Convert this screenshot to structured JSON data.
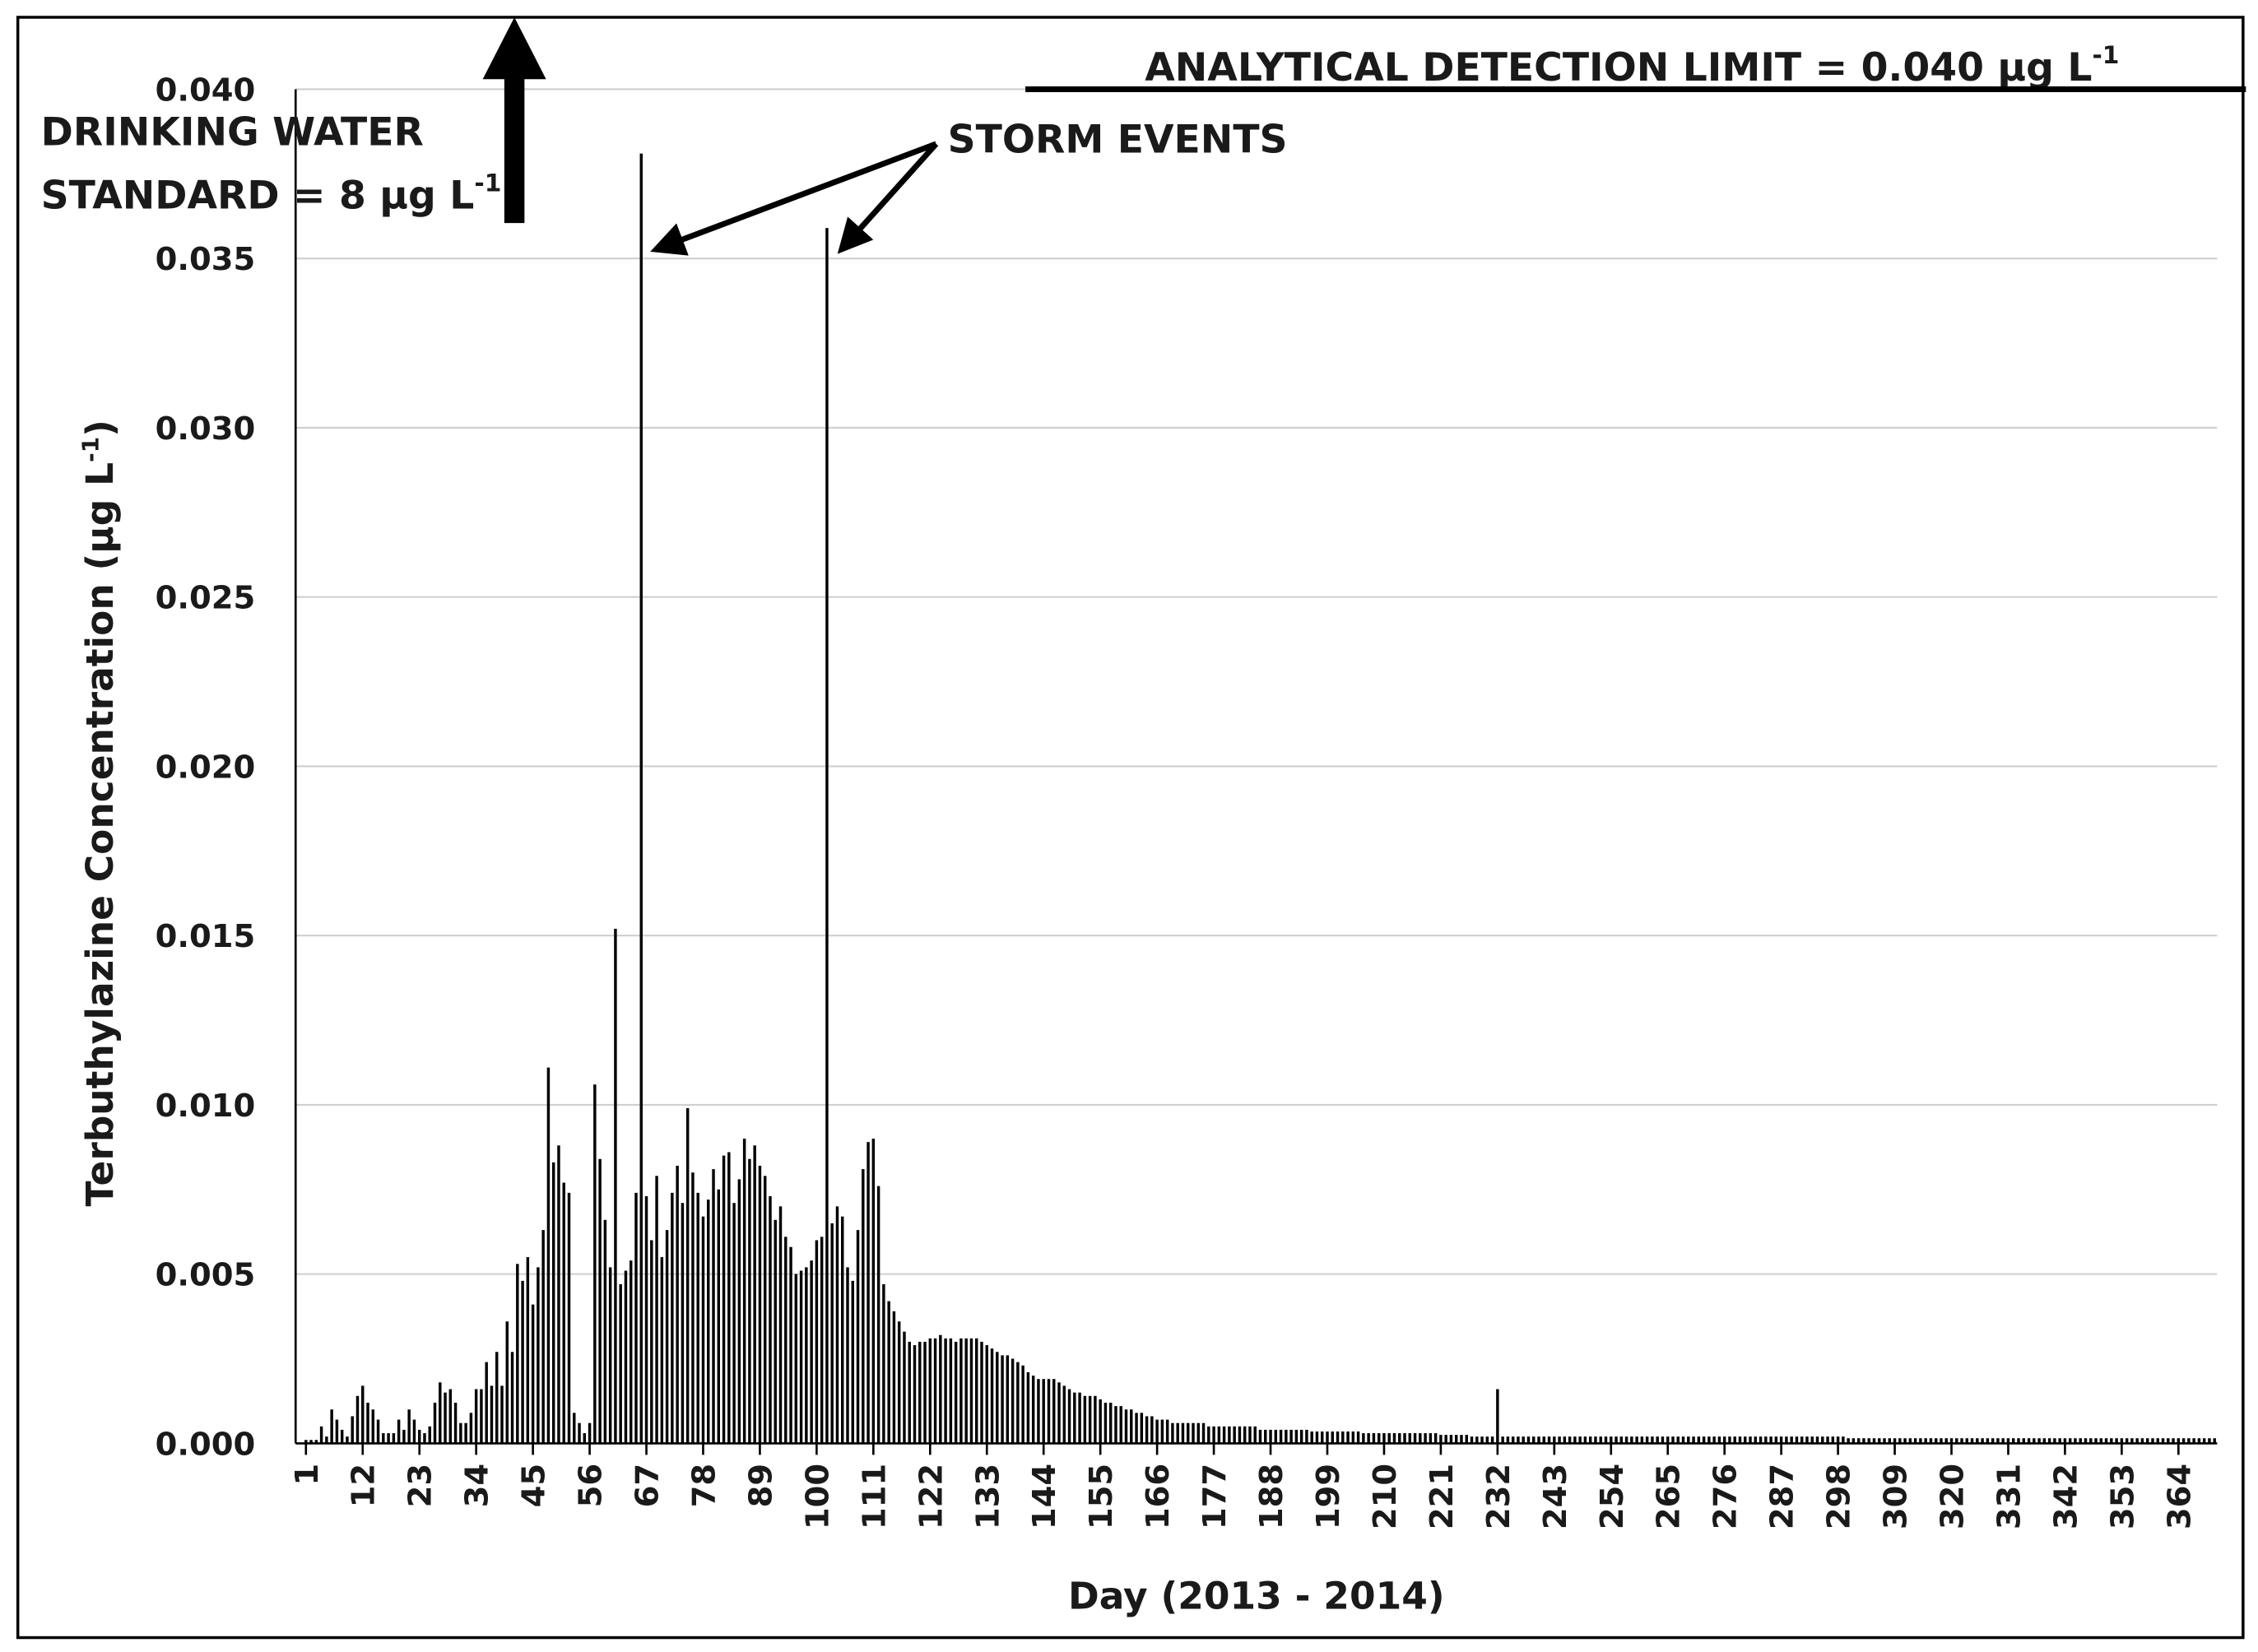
{
  "chart_data": {
    "type": "bar",
    "color": "#000000",
    "grid": true,
    "x_label": "Day (2013 - 2014)",
    "y_label": {
      "text": "Terbuthylazine Concentration (μg L",
      "sup": "-1",
      "close": ")"
    },
    "annotations": {
      "drinking_water": {
        "lines": [
          "DRINKING WATER",
          "STANDARD = 8 μg L"
        ],
        "sup": "-1"
      },
      "detection_limit": {
        "text": "ANALYTICAL DETECTION LIMIT = 0.040 μg L",
        "sup": "-1",
        "value": 0.04
      },
      "storm": {
        "text": "STORM EVENTS",
        "days": [
          66,
          102
        ]
      }
    },
    "xlim": [
      -1,
      371.5
    ],
    "xticks": [
      1,
      12,
      23,
      34,
      45,
      56,
      67,
      78,
      89,
      100,
      111,
      122,
      133,
      144,
      155,
      166,
      177,
      188,
      199,
      210,
      221,
      232,
      243,
      254,
      265,
      276,
      287,
      298,
      309,
      320,
      331,
      342,
      353,
      364
    ],
    "ylim": [
      0,
      0.04
    ],
    "yticks": [
      {
        "value": 0,
        "label": "0.000"
      },
      0.005,
      {
        "value": 0.01,
        "label": "0.010"
      },
      0.015,
      {
        "value": 0.02,
        "label": "0.020"
      },
      0.025,
      {
        "value": 0.03,
        "label": "0.030"
      },
      0.035,
      {
        "value": 0.04,
        "label": "0.040"
      }
    ],
    "x": [
      1,
      2,
      3,
      4,
      5,
      6,
      7,
      8,
      9,
      10,
      11,
      12,
      13,
      14,
      15,
      16,
      17,
      18,
      19,
      20,
      21,
      22,
      23,
      24,
      25,
      26,
      27,
      28,
      29,
      30,
      31,
      32,
      33,
      34,
      35,
      36,
      37,
      38,
      39,
      40,
      41,
      42,
      43,
      44,
      45,
      46,
      47,
      48,
      49,
      50,
      51,
      52,
      53,
      54,
      55,
      56,
      57,
      58,
      59,
      60,
      61,
      62,
      63,
      64,
      65,
      66,
      67,
      68,
      69,
      70,
      71,
      72,
      73,
      74,
      75,
      76,
      77,
      78,
      79,
      80,
      81,
      82,
      83,
      84,
      85,
      86,
      87,
      88,
      89,
      90,
      91,
      92,
      93,
      94,
      95,
      96,
      97,
      98,
      99,
      100,
      101,
      102,
      103,
      104,
      105,
      106,
      107,
      108,
      109,
      110,
      111,
      112,
      113,
      114,
      115,
      116,
      117,
      118,
      119,
      120,
      121,
      122,
      123,
      124,
      125,
      126,
      127,
      128,
      129,
      130,
      131,
      132,
      133,
      134,
      135,
      136,
      137,
      138,
      139,
      140,
      141,
      142,
      143,
      144,
      145,
      146,
      147,
      148,
      149,
      150,
      151,
      152,
      153,
      154,
      155,
      156,
      157,
      158,
      159,
      160,
      161,
      162,
      163,
      164,
      165,
      166,
      167,
      168,
      169,
      170,
      171,
      172,
      173,
      174,
      175,
      176,
      177,
      178,
      179,
      180,
      181,
      182,
      183,
      184,
      185,
      186,
      187,
      188,
      189,
      190,
      191,
      192,
      193,
      194,
      195,
      196,
      197,
      198,
      199,
      200,
      201,
      202,
      203,
      204,
      205,
      206,
      207,
      208,
      209,
      210,
      211,
      212,
      213,
      214,
      215,
      216,
      217,
      218,
      219,
      220,
      221,
      222,
      223,
      224,
      225,
      226,
      227,
      228,
      229,
      230,
      231,
      232,
      233,
      234,
      235,
      236,
      237,
      238,
      239,
      240,
      241,
      242,
      243,
      244,
      245,
      246,
      247,
      248,
      249,
      250,
      251,
      252,
      253,
      254,
      255,
      256,
      257,
      258,
      259,
      260,
      261,
      262,
      263,
      264,
      265,
      266,
      267,
      268,
      269,
      270,
      271,
      272,
      273,
      274,
      275,
      276,
      277,
      278,
      279,
      280,
      281,
      282,
      283,
      284,
      285,
      286,
      287,
      288,
      289,
      290,
      291,
      292,
      293,
      294,
      295,
      296,
      297,
      298,
      299,
      300,
      301,
      302,
      303,
      304,
      305,
      306,
      307,
      308,
      309,
      310,
      311,
      312,
      313,
      314,
      315,
      316,
      317,
      318,
      319,
      320,
      321,
      322,
      323,
      324,
      325,
      326,
      327,
      328,
      329,
      330,
      331,
      332,
      333,
      334,
      335,
      336,
      337,
      338,
      339,
      340,
      341,
      342,
      343,
      344,
      345,
      346,
      347,
      348,
      349,
      350,
      351,
      352,
      353,
      354,
      355,
      356,
      357,
      358,
      359,
      360,
      361,
      362,
      363,
      364,
      365,
      366,
      367,
      368,
      369,
      370,
      371
    ],
    "values": [
      0.0001,
      0.0001,
      0.0001,
      0.0005,
      0.0002,
      0.001,
      0.0007,
      0.0004,
      0.0002,
      0.0008,
      0.0014,
      0.0017,
      0.0012,
      0.001,
      0.0007,
      0.0003,
      0.0003,
      0.0003,
      0.0007,
      0.0004,
      0.001,
      0.0007,
      0.0004,
      0.0003,
      0.0005,
      0.0012,
      0.0018,
      0.0015,
      0.0016,
      0.0012,
      0.0006,
      0.0006,
      0.0009,
      0.0016,
      0.0016,
      0.0024,
      0.0017,
      0.0027,
      0.0017,
      0.0036,
      0.0027,
      0.0053,
      0.0048,
      0.0055,
      0.0041,
      0.0052,
      0.0063,
      0.0111,
      0.0083,
      0.0088,
      0.0077,
      0.0074,
      0.0009,
      0.0006,
      0.0003,
      0.0006,
      0.0106,
      0.0084,
      0.0066,
      0.0052,
      0.0152,
      0.0047,
      0.0051,
      0.0054,
      0.0074,
      0.0381,
      0.0073,
      0.006,
      0.0079,
      0.0055,
      0.0063,
      0.0074,
      0.0082,
      0.0071,
      0.0099,
      0.008,
      0.0074,
      0.0067,
      0.0072,
      0.0081,
      0.0075,
      0.0085,
      0.0086,
      0.0071,
      0.0078,
      0.009,
      0.0084,
      0.0088,
      0.0082,
      0.0079,
      0.0073,
      0.0066,
      0.007,
      0.0061,
      0.0058,
      0.005,
      0.0051,
      0.0052,
      0.0054,
      0.006,
      0.0061,
      0.0359,
      0.0065,
      0.007,
      0.0067,
      0.0052,
      0.0048,
      0.0063,
      0.0081,
      0.0089,
      0.009,
      0.0076,
      0.0047,
      0.0042,
      0.0039,
      0.0036,
      0.0033,
      0.003,
      0.0029,
      0.003,
      0.003,
      0.0031,
      0.0031,
      0.0032,
      0.0031,
      0.0031,
      0.003,
      0.0031,
      0.0031,
      0.0031,
      0.0031,
      0.003,
      0.0029,
      0.0028,
      0.0027,
      0.0026,
      0.0026,
      0.0025,
      0.0024,
      0.0023,
      0.0021,
      0.002,
      0.0019,
      0.0019,
      0.0019,
      0.0019,
      0.0018,
      0.0017,
      0.0016,
      0.0015,
      0.0015,
      0.0014,
      0.0014,
      0.0014,
      0.0013,
      0.0012,
      0.0012,
      0.0011,
      0.0011,
      0.001,
      0.001,
      0.0009,
      0.0009,
      0.0008,
      0.0008,
      0.0007,
      0.0007,
      0.0007,
      0.0006,
      0.0006,
      0.0006,
      0.0006,
      0.0006,
      0.0006,
      0.0006,
      0.0005,
      0.0005,
      0.0005,
      0.0005,
      0.0005,
      0.0005,
      0.0005,
      0.0005,
      0.0005,
      0.0005,
      0.0004,
      0.0004,
      0.0004,
      0.0004,
      0.0004,
      0.0004,
      0.0004,
      0.0004,
      0.0004,
      0.0004,
      0.00035,
      0.00035,
      0.00035,
      0.00035,
      0.00035,
      0.00035,
      0.00035,
      0.00035,
      0.00035,
      0.00035,
      0.0003,
      0.0003,
      0.0003,
      0.0003,
      0.0003,
      0.0003,
      0.0003,
      0.0003,
      0.0003,
      0.0003,
      0.0003,
      0.0003,
      0.0003,
      0.0003,
      0.0003,
      0.00025,
      0.00025,
      0.00025,
      0.00025,
      0.00025,
      0.00025,
      0.0002,
      0.0002,
      0.0002,
      0.0002,
      0.0002,
      0.0016,
      0.0002,
      0.0002,
      0.0002,
      0.0002,
      0.0002,
      0.0002,
      0.0002,
      0.0002,
      0.0002,
      0.0002,
      0.0002,
      0.0002,
      0.0002,
      0.0002,
      0.0002,
      0.0002,
      0.0002,
      0.0002,
      0.0002,
      0.0002,
      0.0002,
      0.0002,
      0.0002,
      0.0002,
      0.0002,
      0.0002,
      0.0002,
      0.0002,
      0.0002,
      0.0002,
      0.0002,
      0.0002,
      0.0002,
      0.0002,
      0.0002,
      0.0002,
      0.0002,
      0.0002,
      0.0002,
      0.0002,
      0.0002,
      0.0002,
      0.0002,
      0.0002,
      0.0002,
      0.0002,
      0.0002,
      0.0002,
      0.0002,
      0.0002,
      0.0002,
      0.0002,
      0.0002,
      0.0002,
      0.0002,
      0.0002,
      0.0002,
      0.0002,
      0.0002,
      0.0002,
      0.0002,
      0.0002,
      0.0002,
      0.0002,
      0.0002,
      0.0002,
      0.0002,
      0.00015,
      0.00015,
      0.00015,
      0.00015,
      0.00015,
      0.00015,
      0.00015,
      0.00015,
      0.00015,
      0.00015,
      0.00015,
      0.00015,
      0.00015,
      0.00015,
      0.00015,
      0.00015,
      0.00015,
      0.00015,
      0.00015,
      0.00015,
      0.00015,
      0.00015,
      0.00015,
      0.00015,
      0.00015,
      0.00015,
      0.00015,
      0.00015,
      0.00015,
      0.00015,
      0.00015,
      0.00015,
      0.00015,
      0.00015,
      0.00015,
      0.00015,
      0.00015,
      0.00015,
      0.00015,
      0.00015,
      0.00015,
      0.00015,
      0.00015,
      0.00015,
      0.00015,
      0.00015,
      0.00015,
      0.00015,
      0.00015,
      0.00015,
      0.00015,
      0.00015,
      0.00015,
      0.00015,
      0.00015,
      0.00015,
      0.00015,
      0.00015,
      0.00015,
      0.00015,
      0.00015,
      0.00015,
      0.00015,
      0.00015,
      0.00015,
      0.00015,
      0.00015,
      0.00015,
      0.00015,
      0.00015,
      0.00015,
      0.00015
    ]
  }
}
